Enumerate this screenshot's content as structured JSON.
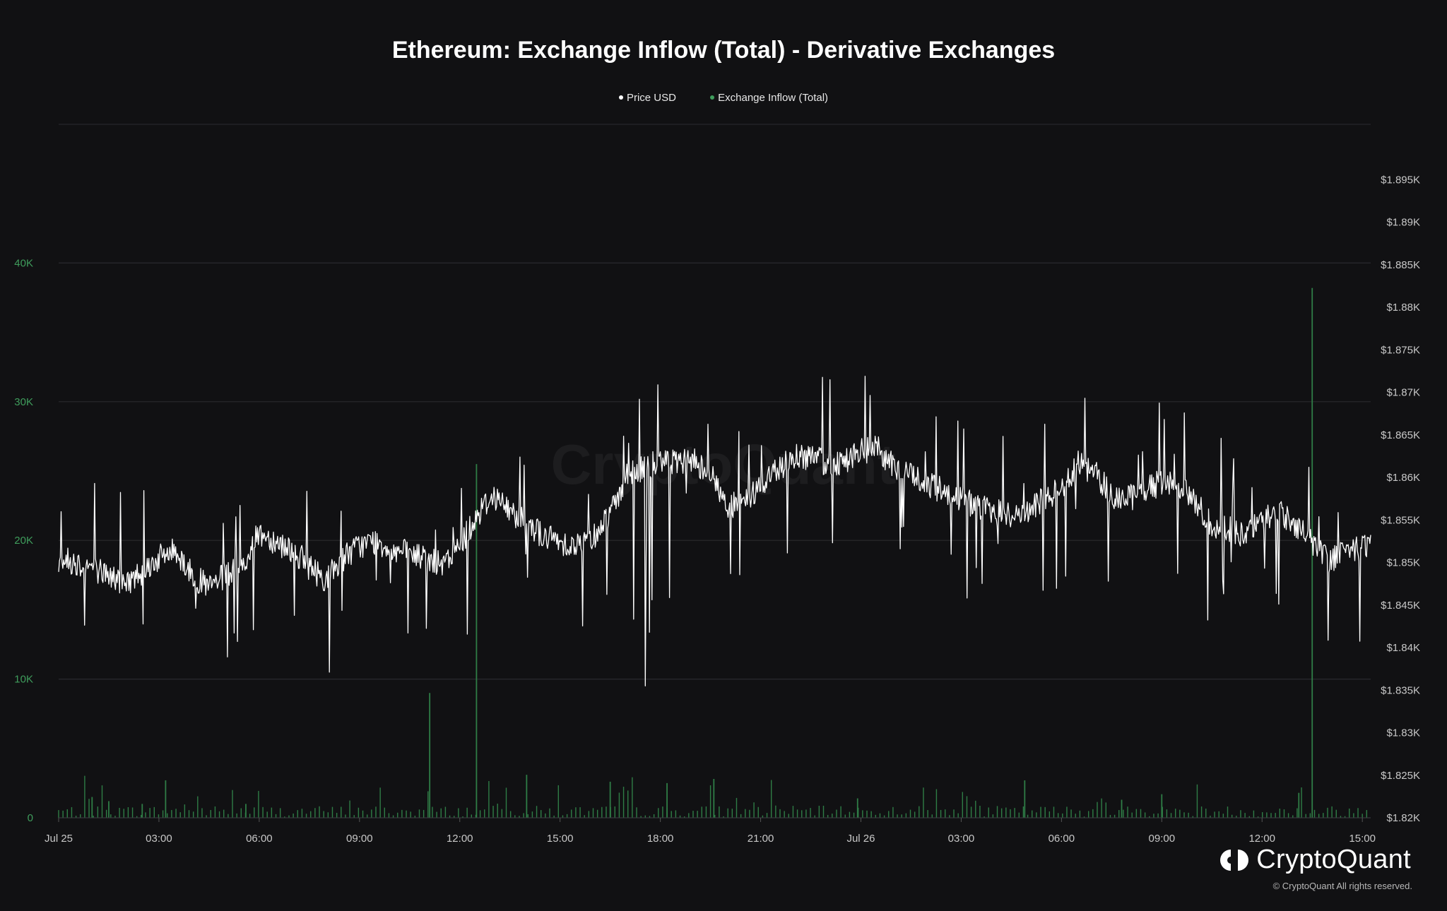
{
  "chart_data": {
    "type": "line",
    "title": "Ethereum: Exchange Inflow (Total) - Derivative Exchanges",
    "legend_position": "top-center",
    "grid": true,
    "series": [
      {
        "name": "Price USD",
        "axis": "right",
        "style": "line",
        "color": "#ffffff",
        "anchors_x": [
          0,
          0.5,
          1,
          1.5,
          2,
          2.5,
          3,
          3.5,
          4,
          4.5,
          5,
          5.5,
          6,
          6.5,
          7,
          7.5,
          8,
          8.5,
          9,
          9.5,
          10,
          10.5,
          11,
          11.5,
          12,
          12.5,
          13,
          13.5,
          14,
          14.5,
          15,
          15.5,
          16,
          16.5,
          17,
          17.5,
          18,
          18.5,
          19,
          19.5,
          20,
          20.5,
          21,
          21.5,
          22,
          22.5,
          23,
          23.5,
          24,
          24.5,
          25,
          25.5,
          26,
          26.5,
          27,
          27.5,
          28,
          28.5,
          29,
          29.5,
          30,
          30.5,
          31,
          31.5,
          32,
          32.5,
          33,
          33.5,
          34,
          34.5,
          35,
          35.5,
          36,
          36.5,
          37,
          37.5,
          38,
          38.5,
          39,
          39.25
        ],
        "anchors_y": [
          1850.5,
          1850.0,
          1849.5,
          1848.5,
          1847.5,
          1849.0,
          1850.5,
          1851.5,
          1848.5,
          1847.0,
          1848.5,
          1849.5,
          1853.5,
          1852.5,
          1851.5,
          1849.5,
          1848.0,
          1850.5,
          1852.0,
          1852.5,
          1851.5,
          1851.0,
          1850.5,
          1849.5,
          1852.0,
          1855.5,
          1858.0,
          1856.0,
          1855.0,
          1853.0,
          1852.5,
          1852.0,
          1853.0,
          1856.0,
          1860.0,
          1861.0,
          1862.0,
          1861.5,
          1862.0,
          1860.5,
          1856.5,
          1857.0,
          1859.0,
          1861.0,
          1862.5,
          1862.5,
          1861.5,
          1862.0,
          1863.0,
          1863.5,
          1861.0,
          1860.5,
          1859.0,
          1858.5,
          1857.5,
          1856.5,
          1856.0,
          1855.5,
          1856.0,
          1857.5,
          1859.0,
          1861.5,
          1860.5,
          1858.0,
          1857.5,
          1858.5,
          1859.5,
          1859.0,
          1857.0,
          1854.5,
          1854.0,
          1853.0,
          1855.0,
          1856.0,
          1854.5,
          1852.5,
          1850.0,
          1852.0,
          1851.5,
          1852.5
        ],
        "noise": 1.6
      },
      {
        "name": "Exchange Inflow (Total)",
        "axis": "left",
        "style": "bars",
        "color": "#2f7d46",
        "baseline": 300,
        "spikes_x": [
          1.0,
          1.5,
          2.5,
          3.2,
          5.6,
          11.1,
          12.5,
          14.0,
          16.5,
          18.2,
          19.6,
          23.9,
          28.9,
          31.8,
          33.0,
          37.1,
          37.5
        ],
        "spikes_y": [
          1500,
          1200,
          1000,
          2700,
          1000,
          9000,
          25500,
          3100,
          2600,
          2500,
          2800,
          1400,
          2700,
          1300,
          1700,
          1800,
          38200
        ]
      }
    ],
    "y_left": {
      "min": 0,
      "max": 50000,
      "ticks": [
        0,
        10000,
        20000,
        30000,
        40000
      ],
      "tick_labels": [
        "0",
        "10K",
        "20K",
        "30K",
        "40K"
      ],
      "color": "#3f9d5c"
    },
    "y_right": {
      "min": 1820,
      "max": 1901.5,
      "ticks": [
        1820,
        1825,
        1830,
        1835,
        1840,
        1845,
        1850,
        1855,
        1860,
        1865,
        1870,
        1875,
        1880,
        1885,
        1890,
        1895
      ],
      "tick_labels": [
        "$1.82K",
        "$1.825K",
        "$1.83K",
        "$1.835K",
        "$1.84K",
        "$1.845K",
        "$1.85K",
        "$1.855K",
        "$1.86K",
        "$1.865K",
        "$1.87K",
        "$1.875K",
        "$1.88K",
        "$1.885K",
        "$1.89K",
        "$1.895K"
      ],
      "color": "#c8c8c8"
    },
    "x_axis": {
      "min": 0,
      "max": 39.25,
      "tick_values": [
        0,
        3,
        6,
        9,
        12,
        15,
        18,
        21,
        24,
        27,
        30,
        33,
        36,
        39
      ],
      "tick_labels": [
        "Jul 25",
        "03:00",
        "06:00",
        "09:00",
        "12:00",
        "15:00",
        "18:00",
        "21:00",
        "Jul 26",
        "03:00",
        "06:00",
        "09:00",
        "12:00",
        "15:00"
      ]
    }
  },
  "legend": {
    "items": [
      {
        "label": "Price USD",
        "color": "#ffffff"
      },
      {
        "label": "Exchange Inflow (Total)",
        "color": "#3f9d5c"
      }
    ]
  },
  "watermark": "CryptoQuant",
  "brand": {
    "name": "CryptoQuant",
    "copyright": "© CryptoQuant All rights reserved."
  }
}
